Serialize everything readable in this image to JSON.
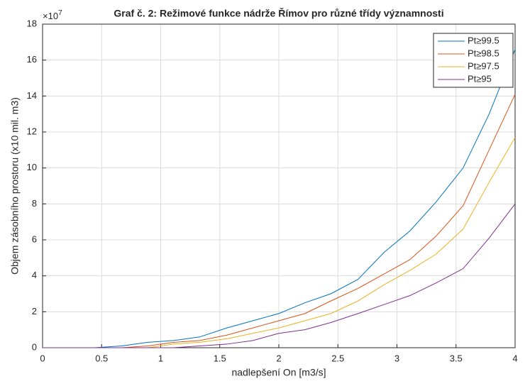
{
  "chart_data": {
    "type": "line",
    "title": "Graf č. 2: Režimové funkce nádrže Římov pro různé třídy významnosti",
    "xlabel": "nadlepšení On [m3/s]",
    "ylabel": "Objem zásobního prostoru (x10 mil. m3)",
    "y_multiplier": {
      "base": "×10",
      "exponent": "7"
    },
    "x": [
      0,
      0.22,
      0.44,
      0.67,
      0.89,
      1.11,
      1.33,
      1.56,
      1.78,
      2,
      2.22,
      2.44,
      2.67,
      2.89,
      3.11,
      3.33,
      3.56,
      3.78,
      4
    ],
    "series": [
      {
        "name": "Pt≥99.5",
        "color": "#0072bd",
        "values": [
          0,
          0,
          0,
          0.1,
          0.3,
          0.4,
          0.6,
          1.1,
          1.5,
          1.9,
          2.5,
          3.0,
          3.8,
          5.3,
          6.5,
          8.1,
          10.0,
          13.0,
          16.6
        ]
      },
      {
        "name": "Pt≥98.5",
        "color": "#d95319",
        "values": [
          0,
          0,
          0,
          0,
          0.1,
          0.3,
          0.4,
          0.7,
          1.1,
          1.5,
          1.9,
          2.6,
          3.3,
          4.1,
          4.9,
          6.2,
          7.9,
          11.0,
          14.1
        ]
      },
      {
        "name": "Pt≥97.5",
        "color": "#edb120",
        "values": [
          0,
          0,
          0,
          0,
          0,
          0.2,
          0.3,
          0.5,
          0.8,
          1.1,
          1.5,
          1.9,
          2.6,
          3.5,
          4.3,
          5.2,
          6.6,
          9.2,
          11.7
        ]
      },
      {
        "name": "Pt≥95",
        "color": "#7e2f8e",
        "values": [
          0,
          0,
          0,
          0,
          0,
          0,
          0.1,
          0.2,
          0.4,
          0.8,
          1.0,
          1.4,
          1.9,
          2.4,
          2.9,
          3.6,
          4.4,
          6.1,
          8.0
        ]
      }
    ],
    "xlim": [
      0,
      4
    ],
    "xticks": [
      0,
      0.5,
      1,
      1.5,
      2,
      2.5,
      3,
      3.5,
      4
    ],
    "ylim": [
      0,
      18
    ],
    "yticks": [
      0,
      2,
      4,
      6,
      8,
      10,
      12,
      14,
      16,
      18
    ],
    "grid": true,
    "legend": "northeast"
  }
}
